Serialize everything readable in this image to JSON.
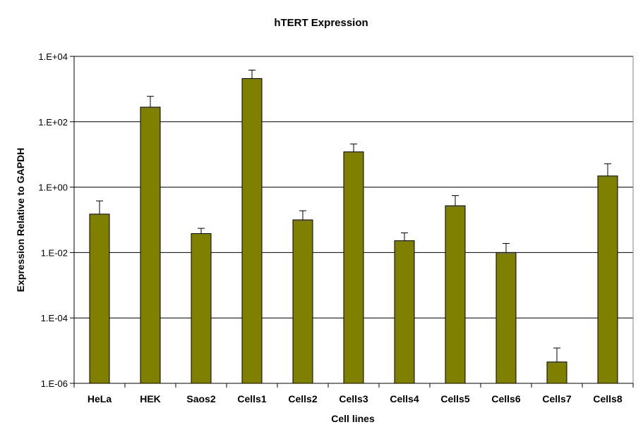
{
  "chart_data": {
    "type": "bar",
    "title": "hTERT Expression",
    "xlabel": "Cell lines",
    "ylabel": "Expression Relative to GAPDH",
    "yscale": "log",
    "ylim": [
      1e-06,
      10000
    ],
    "yticks": [
      1e-06,
      0.0001,
      0.01,
      1,
      100,
      10000
    ],
    "ytick_labels": [
      "1.E-06",
      "1.E-04",
      "1.E-02",
      "1.E+00",
      "1.E+02",
      "1.E+04"
    ],
    "grid": "horizontal major gridlines",
    "legend": "none",
    "categories": [
      "HeLa",
      "HEK",
      "Saos2",
      "Cells1",
      "Cells2",
      "Cells3",
      "Cells4",
      "Cells5",
      "Cells6",
      "Cells7",
      "Cells8"
    ],
    "series": [
      {
        "values": [
          0.15,
          280,
          0.038,
          2100,
          0.1,
          12,
          0.023,
          0.27,
          0.01,
          4.5e-06,
          2.2
        ],
        "error_upper": [
          0.38,
          600,
          0.055,
          3800,
          0.19,
          21,
          0.04,
          0.55,
          0.019,
          1.2e-05,
          5.2
        ],
        "color": "#808000"
      }
    ]
  }
}
